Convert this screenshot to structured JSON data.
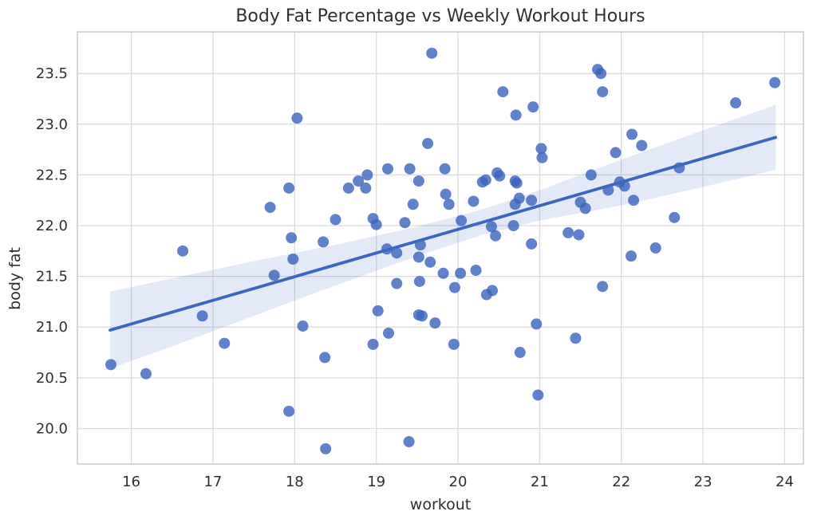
{
  "figure": {
    "title": "Body Fat Percentage vs Weekly Workout Hours"
  },
  "chart_data": {
    "type": "scatter",
    "title": "Body Fat Percentage vs Weekly Workout Hours",
    "xlabel": "workout",
    "ylabel": "body fat",
    "xlim": [
      15.34,
      24.23
    ],
    "ylim": [
      19.65,
      23.91
    ],
    "grid": true,
    "legend": "none",
    "x_ticks": [
      16,
      17,
      18,
      19,
      20,
      21,
      22,
      23,
      24
    ],
    "x_tick_labels": [
      "16",
      "17",
      "18",
      "19",
      "20",
      "21",
      "22",
      "23",
      "24"
    ],
    "y_ticks": [
      20.0,
      20.5,
      21.0,
      21.5,
      22.0,
      22.5,
      23.0,
      23.5
    ],
    "y_tick_labels": [
      "20.0",
      "20.5",
      "21.0",
      "21.5",
      "22.0",
      "22.5",
      "23.0",
      "23.5"
    ],
    "points": [
      [
        19.68,
        23.7
      ],
      [
        21.71,
        23.54
      ],
      [
        21.75,
        23.5
      ],
      [
        23.88,
        23.41
      ],
      [
        20.55,
        23.32
      ],
      [
        21.77,
        23.32
      ],
      [
        23.4,
        23.21
      ],
      [
        20.92,
        23.17
      ],
      [
        20.71,
        23.09
      ],
      [
        18.03,
        23.06
      ],
      [
        22.13,
        22.9
      ],
      [
        19.63,
        22.81
      ],
      [
        22.25,
        22.79
      ],
      [
        21.02,
        22.76
      ],
      [
        21.93,
        22.72
      ],
      [
        21.03,
        22.67
      ],
      [
        22.71,
        22.57
      ],
      [
        19.14,
        22.56
      ],
      [
        19.41,
        22.56
      ],
      [
        19.84,
        22.56
      ],
      [
        20.48,
        22.52
      ],
      [
        18.89,
        22.5
      ],
      [
        20.51,
        22.49
      ],
      [
        21.63,
        22.5
      ],
      [
        18.78,
        22.44
      ],
      [
        19.52,
        22.44
      ],
      [
        20.34,
        22.45
      ],
      [
        20.7,
        22.44
      ],
      [
        20.3,
        22.43
      ],
      [
        21.98,
        22.43
      ],
      [
        20.72,
        22.42
      ],
      [
        22.04,
        22.39
      ],
      [
        18.66,
        22.37
      ],
      [
        18.87,
        22.37
      ],
      [
        17.93,
        22.37
      ],
      [
        21.84,
        22.35
      ],
      [
        19.85,
        22.31
      ],
      [
        20.75,
        22.27
      ],
      [
        19.45,
        22.21
      ],
      [
        20.19,
        22.24
      ],
      [
        21.5,
        22.23
      ],
      [
        22.15,
        22.25
      ],
      [
        19.89,
        22.21
      ],
      [
        20.7,
        22.21
      ],
      [
        20.9,
        22.25
      ],
      [
        17.7,
        22.18
      ],
      [
        21.56,
        22.17
      ],
      [
        22.65,
        22.08
      ],
      [
        18.96,
        22.07
      ],
      [
        18.5,
        22.06
      ],
      [
        20.04,
        22.05
      ],
      [
        19.35,
        22.03
      ],
      [
        19.0,
        22.01
      ],
      [
        20.68,
        22.0
      ],
      [
        20.41,
        21.99
      ],
      [
        21.35,
        21.93
      ],
      [
        20.46,
        21.9
      ],
      [
        21.48,
        21.91
      ],
      [
        17.96,
        21.88
      ],
      [
        18.35,
        21.84
      ],
      [
        20.9,
        21.82
      ],
      [
        19.54,
        21.81
      ],
      [
        22.42,
        21.78
      ],
      [
        19.13,
        21.77
      ],
      [
        16.63,
        21.75
      ],
      [
        19.25,
        21.73
      ],
      [
        22.12,
        21.7
      ],
      [
        19.52,
        21.69
      ],
      [
        17.98,
        21.67
      ],
      [
        19.66,
        21.64
      ],
      [
        20.22,
        21.56
      ],
      [
        19.82,
        21.53
      ],
      [
        20.03,
        21.53
      ],
      [
        17.75,
        21.51
      ],
      [
        19.53,
        21.45
      ],
      [
        19.25,
        21.43
      ],
      [
        21.77,
        21.4
      ],
      [
        19.96,
        21.39
      ],
      [
        20.42,
        21.36
      ],
      [
        20.35,
        21.32
      ],
      [
        19.02,
        21.16
      ],
      [
        19.52,
        21.12
      ],
      [
        16.87,
        21.11
      ],
      [
        19.56,
        21.11
      ],
      [
        19.72,
        21.04
      ],
      [
        20.96,
        21.03
      ],
      [
        18.1,
        21.01
      ],
      [
        19.15,
        20.94
      ],
      [
        21.44,
        20.89
      ],
      [
        17.14,
        20.84
      ],
      [
        18.96,
        20.83
      ],
      [
        19.95,
        20.83
      ],
      [
        20.76,
        20.75
      ],
      [
        18.37,
        20.7
      ],
      [
        15.75,
        20.63
      ],
      [
        16.18,
        20.54
      ],
      [
        20.98,
        20.33
      ],
      [
        17.93,
        20.17
      ],
      [
        19.4,
        19.87
      ],
      [
        18.38,
        19.8
      ]
    ],
    "regression_line": {
      "x1": 15.74,
      "y1": 20.97,
      "x2": 23.89,
      "y2": 22.87
    },
    "confidence_band": [
      [
        15.74,
        20.59,
        21.35
      ],
      [
        16.5,
        20.81,
        21.48
      ],
      [
        17.5,
        21.11,
        21.65
      ],
      [
        18.5,
        21.41,
        21.81
      ],
      [
        19.5,
        21.7,
        21.99
      ],
      [
        20.3,
        21.91,
        22.16
      ],
      [
        21.0,
        22.05,
        22.35
      ],
      [
        22.0,
        22.2,
        22.65
      ],
      [
        23.0,
        22.38,
        22.94
      ],
      [
        23.89,
        22.55,
        23.19
      ]
    ],
    "colors": {
      "point": "#3a63be",
      "point_opacity": 0.8,
      "line": "#3c66c0",
      "band": "#3a63be",
      "band_opacity": 0.14,
      "grid": "#dcdcdc",
      "spine": "#cccccc",
      "text": "#303030",
      "background": "#ffffff"
    }
  }
}
